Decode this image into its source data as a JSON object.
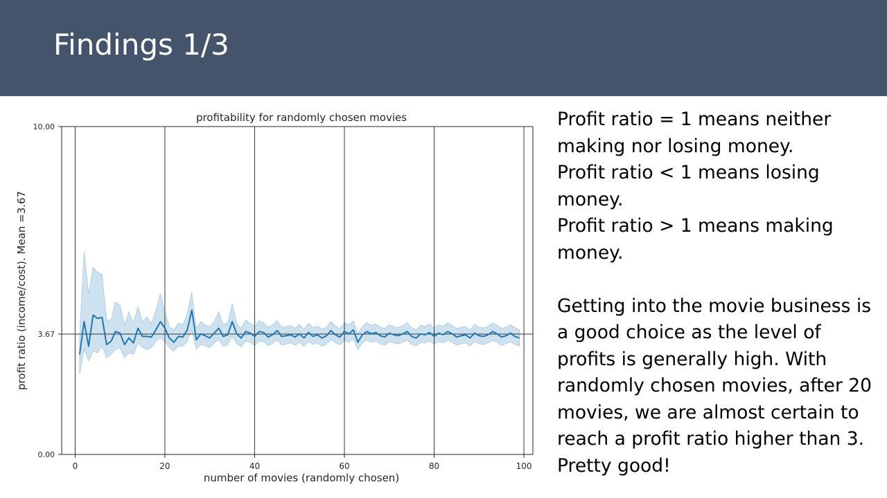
{
  "slide": {
    "title": "Findings 1/3",
    "header_color": "#44546a",
    "paragraphs_top": [
      "Profit ratio = 1 means neither making nor losing money.",
      "Profit ratio < 1 means losing money.",
      "Profit ratio > 1 means making money."
    ],
    "paragraph_bottom": "Getting into the movie business is a good choice as the level of profits is generally high. With randomly chosen movies, after 20 movies, we are almost certain to reach a profit ratio higher than 3. Pretty good!"
  },
  "chart_data": {
    "type": "line",
    "title": "profitability for randomly chosen movies",
    "xlabel": "number of movies (randomly chosen)",
    "ylabel": "profit ratio (income/cost). Mean =3.67",
    "xlim": [
      -3,
      102
    ],
    "ylim": [
      0,
      10
    ],
    "xticks": [
      "0",
      "20",
      "40",
      "60",
      "80",
      "100"
    ],
    "xtick_values": [
      0,
      20,
      40,
      60,
      80,
      100
    ],
    "yticks": [
      "0.00",
      "3.67",
      "10.00"
    ],
    "ytick_values": [
      0,
      3.67,
      10
    ],
    "grid": "vertical lines at x ticks",
    "mean_line": 3.67,
    "line_color": "#1f77b4",
    "band_color": "#1f77b4",
    "series": [
      {
        "x": [
          1,
          2,
          3,
          4,
          5,
          6,
          7,
          8,
          9,
          10,
          11,
          12,
          13,
          14,
          15,
          16,
          17,
          18,
          19,
          20,
          21,
          22,
          23,
          24,
          25,
          26,
          27,
          28,
          29,
          30,
          31,
          32,
          33,
          34,
          35,
          36,
          37,
          38,
          39,
          40,
          41,
          42,
          43,
          44,
          45,
          46,
          47,
          48,
          49,
          50,
          51,
          52,
          53,
          54,
          55,
          56,
          57,
          58,
          59,
          60,
          61,
          62,
          63,
          64,
          65,
          66,
          67,
          68,
          69,
          70,
          71,
          72,
          73,
          74,
          75,
          76,
          77,
          78,
          79,
          80,
          81,
          82,
          83,
          84,
          85,
          86,
          87,
          88,
          89,
          90,
          91,
          92,
          93,
          94,
          95,
          96,
          97,
          98,
          99
        ],
        "y": [
          3.05,
          4.05,
          3.3,
          4.25,
          4.15,
          4.18,
          3.35,
          3.45,
          3.75,
          3.7,
          3.35,
          3.55,
          3.4,
          3.85,
          3.6,
          3.6,
          3.58,
          3.8,
          4.05,
          3.85,
          3.55,
          3.42,
          3.6,
          3.58,
          3.8,
          4.4,
          3.5,
          3.68,
          3.62,
          3.55,
          3.7,
          3.85,
          3.6,
          3.65,
          4.05,
          3.68,
          3.55,
          3.75,
          3.7,
          3.6,
          3.75,
          3.72,
          3.58,
          3.65,
          3.78,
          3.6,
          3.62,
          3.65,
          3.58,
          3.68,
          3.55,
          3.72,
          3.6,
          3.65,
          3.55,
          3.62,
          3.78,
          3.65,
          3.58,
          3.75,
          3.68,
          3.8,
          3.42,
          3.65,
          3.75,
          3.68,
          3.72,
          3.62,
          3.58,
          3.7,
          3.65,
          3.62,
          3.68,
          3.75,
          3.6,
          3.55,
          3.68,
          3.65,
          3.72,
          3.6,
          3.7,
          3.65,
          3.75,
          3.68,
          3.58,
          3.62,
          3.65,
          3.55,
          3.7,
          3.62,
          3.6,
          3.65,
          3.75,
          3.68,
          3.58,
          3.62,
          3.7,
          3.6,
          3.55
        ],
        "y_lower": [
          2.45,
          3.2,
          2.85,
          3.15,
          3.1,
          3.3,
          2.95,
          3.05,
          3.2,
          3.25,
          2.95,
          3.1,
          3.05,
          3.4,
          3.25,
          3.2,
          3.25,
          3.45,
          3.55,
          3.45,
          3.25,
          3.15,
          3.3,
          3.3,
          3.45,
          3.8,
          3.2,
          3.35,
          3.32,
          3.25,
          3.4,
          3.5,
          3.3,
          3.35,
          3.6,
          3.38,
          3.28,
          3.45,
          3.42,
          3.32,
          3.45,
          3.45,
          3.32,
          3.38,
          3.5,
          3.34,
          3.36,
          3.4,
          3.33,
          3.42,
          3.3,
          3.45,
          3.35,
          3.4,
          3.3,
          3.37,
          3.5,
          3.4,
          3.34,
          3.48,
          3.42,
          3.52,
          3.2,
          3.4,
          3.48,
          3.42,
          3.46,
          3.37,
          3.34,
          3.44,
          3.4,
          3.37,
          3.42,
          3.48,
          3.35,
          3.31,
          3.42,
          3.4,
          3.46,
          3.35,
          3.44,
          3.4,
          3.48,
          3.42,
          3.33,
          3.37,
          3.4,
          3.31,
          3.44,
          3.37,
          3.35,
          3.4,
          3.48,
          3.42,
          3.33,
          3.37,
          3.44,
          3.35,
          3.31
        ],
        "y_upper": [
          3.65,
          6.2,
          4.9,
          5.7,
          5.55,
          5.5,
          4.1,
          4.1,
          4.65,
          4.55,
          3.95,
          4.35,
          4.0,
          4.5,
          4.05,
          4.2,
          4.0,
          4.4,
          4.9,
          4.35,
          3.9,
          3.8,
          4.0,
          3.95,
          4.3,
          4.95,
          3.85,
          4.05,
          3.95,
          3.9,
          4.05,
          4.35,
          3.95,
          4.0,
          4.6,
          4.0,
          3.85,
          4.1,
          4.0,
          3.9,
          4.08,
          4.02,
          3.88,
          3.95,
          4.08,
          3.88,
          3.9,
          3.93,
          3.85,
          3.96,
          3.82,
          4.0,
          3.87,
          3.92,
          3.82,
          3.88,
          4.06,
          3.92,
          3.84,
          4.02,
          3.94,
          4.08,
          3.68,
          3.9,
          4.02,
          3.94,
          3.98,
          3.88,
          3.84,
          3.96,
          3.9,
          3.87,
          3.94,
          4.02,
          3.86,
          3.8,
          3.94,
          3.9,
          3.98,
          3.86,
          3.96,
          3.9,
          4.02,
          3.94,
          3.84,
          3.88,
          3.9,
          3.8,
          3.96,
          3.88,
          3.86,
          3.9,
          4.02,
          3.94,
          3.84,
          3.88,
          3.96,
          3.86,
          3.8
        ]
      }
    ]
  }
}
